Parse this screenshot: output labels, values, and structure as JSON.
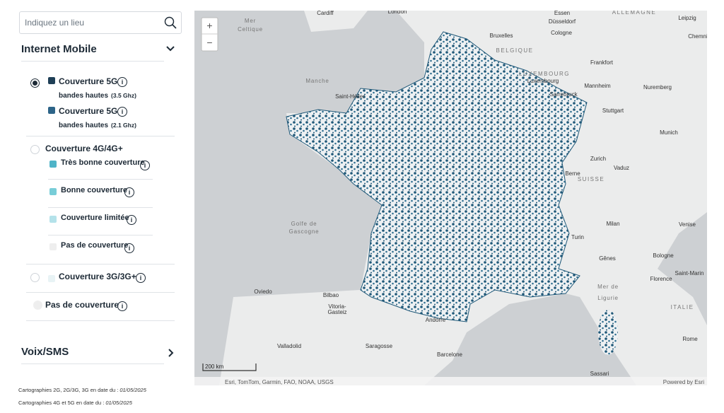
{
  "search": {
    "placeholder": "Indiquez un lieu"
  },
  "internet_mobile": {
    "title": "Internet Mobile",
    "option_5g": [
      {
        "label": "Couverture 5G",
        "sub": "bandes hautes",
        "band": "(3.5 Ghz)"
      },
      {
        "label": "Couverture 5G",
        "sub": "bandes hautes",
        "band": "(2.1 Ghz)"
      }
    ],
    "option_4g": {
      "label": "Couverture 4G/4G+",
      "levels": [
        "Très bonne couverture",
        "Bonne couverture",
        "Couverture limitée",
        "Pas de couverture"
      ]
    },
    "option_3g": {
      "label": "Couverture 3G/3G+"
    },
    "option_none": {
      "label": "Pas de couverture"
    }
  },
  "voix_sms": {
    "title": "Voix/SMS"
  },
  "footer": [
    {
      "text": "Cartographies 2G, 2G/3G, 3G en date du :",
      "date": "01/05/2025"
    },
    {
      "text": "Cartographies 4G et 5G en date du :",
      "date": "01/05/2025"
    }
  ],
  "map": {
    "zoom_in": "+",
    "zoom_out": "−",
    "scale": "200 km",
    "attribution": "Esri, TomTom, Garmin, FAO, NOAA, USGS",
    "powered": "Powered by Esri",
    "labels": [
      "Cardiff",
      "London",
      "Essen",
      "Düsseldorf",
      "ALLEMAGNE",
      "Leipzig",
      "Mer",
      "Celtique",
      "Bruxelles",
      "Cologne",
      "Chemni",
      "BELGIQUE",
      "Frankfort",
      "LUXEMBOURG",
      "Luxembourg",
      "Manche",
      "Saint-Hélier",
      "Sarrebruck",
      "Mannheim",
      "Nuremberg",
      "Stuttgart",
      "Munich",
      "Zurich",
      "Vaduz",
      "Berne",
      "SUISSE",
      "Golfe de",
      "Gascogne",
      "Milan",
      "Venise",
      "Turin",
      "Bologne",
      "Gênes",
      "Florence",
      "Saint-Marin",
      "Mer de",
      "Ligurie",
      "ITALIE",
      "Rome",
      "Oviedo",
      "Bilbao",
      "Vitoria-",
      "Gasteiz",
      "Andorre",
      "Valladolid",
      "Saragosse",
      "Barcelone",
      "Sassari"
    ]
  }
}
